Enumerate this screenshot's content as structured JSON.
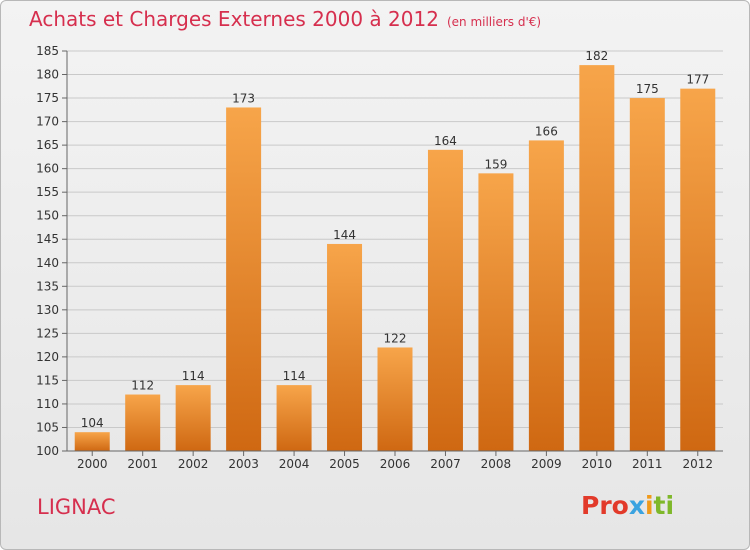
{
  "header": {
    "title": "Achats et Charges Externes 2000 à 2012",
    "unit": "(en milliers d'€)"
  },
  "footer": {
    "place": "LIGNAC",
    "logo": [
      "Pro",
      "x",
      "i",
      "ti"
    ]
  },
  "colors": {
    "bar_top": "#f7a54a",
    "bar_bottom": "#cf6812",
    "title": "#d62f4e",
    "grid": "#c9c9c9"
  },
  "chart_data": {
    "type": "bar",
    "categories": [
      "2000",
      "2001",
      "2002",
      "2003",
      "2004",
      "2005",
      "2006",
      "2007",
      "2008",
      "2009",
      "2010",
      "2011",
      "2012"
    ],
    "values": [
      104,
      112,
      114,
      173,
      114,
      144,
      122,
      164,
      159,
      166,
      182,
      175,
      177
    ],
    "ylim": [
      100,
      185
    ],
    "yticks": [
      100,
      105,
      110,
      115,
      120,
      125,
      130,
      135,
      140,
      145,
      150,
      155,
      160,
      165,
      170,
      175,
      180,
      185
    ],
    "grid": true
  }
}
